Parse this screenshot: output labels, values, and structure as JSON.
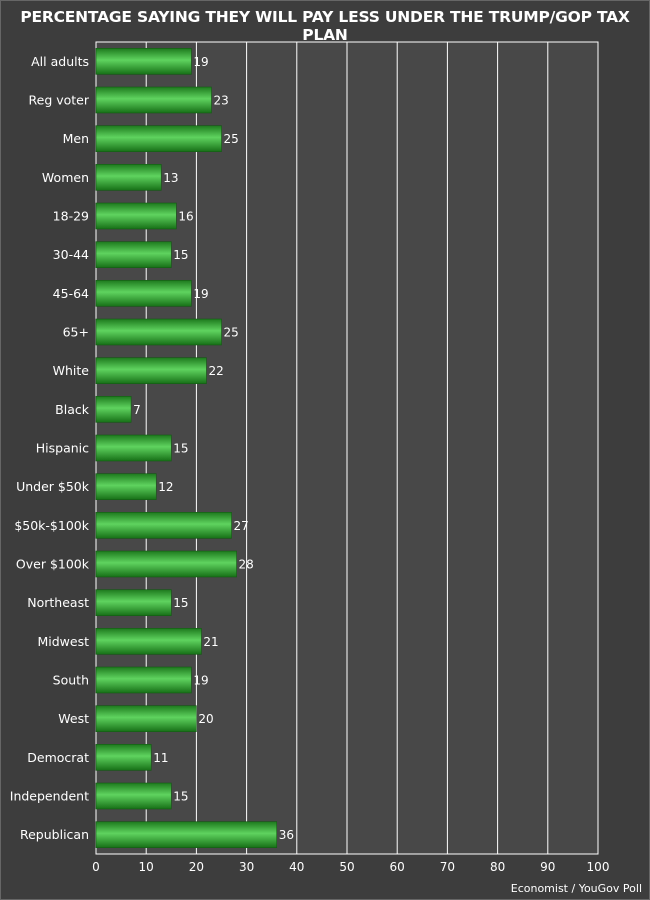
{
  "title": "PERCENTAGE SAYING THEY WILL PAY LESS UNDER THE TRUMP/GOP TAX PLAN",
  "source": "Economist / YouGov Poll",
  "colors": {
    "background": "#3d3d3d",
    "bar": "#2fa82f",
    "grid": "#ffffff"
  },
  "chart_data": {
    "type": "bar",
    "orientation": "horizontal",
    "title": "PERCENTAGE SAYING THEY WILL PAY LESS UNDER THE TRUMP/GOP TAX PLAN",
    "xlabel": "",
    "ylabel": "",
    "xlim": [
      0,
      100
    ],
    "xticks": [
      0,
      10,
      20,
      30,
      40,
      50,
      60,
      70,
      80,
      90,
      100
    ],
    "grid": true,
    "categories": [
      "All adults",
      "Reg voter",
      "Men",
      "Women",
      "18-29",
      "30-44",
      "45-64",
      "65+",
      "White",
      "Black",
      "Hispanic",
      "Under $50k",
      "$50k-$100k",
      "Over $100k",
      "Northeast",
      "Midwest",
      "South",
      "West",
      "Democrat",
      "Independent",
      "Republican"
    ],
    "values": [
      19,
      23,
      25,
      13,
      16,
      15,
      19,
      25,
      22,
      7,
      15,
      12,
      27,
      28,
      15,
      21,
      19,
      20,
      11,
      15,
      36
    ]
  }
}
